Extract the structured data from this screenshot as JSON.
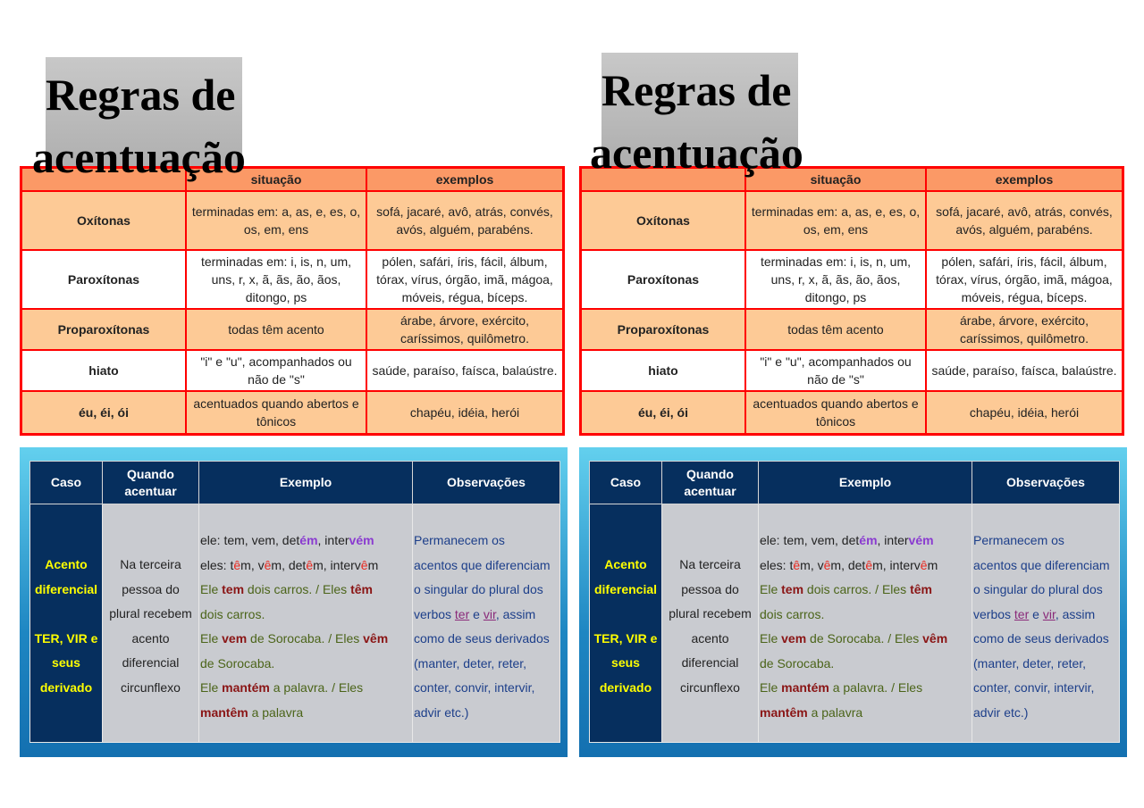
{
  "title": {
    "line1": "Regras de",
    "line2": "acentuação"
  },
  "rules_table": {
    "headers": [
      "",
      "situação",
      "exemplos"
    ],
    "rows": [
      {
        "tipo": "Oxítonas",
        "situacao": "terminadas em: a, as, e, es, o, os, em, ens",
        "exemplos": "sofá, jacaré, avô, atrás, convés, avós, alguém, parabéns."
      },
      {
        "tipo": "Paroxítonas",
        "situacao": "terminadas em: i, is, n, um, uns, r, x, ã, ãs, ão, ãos, ditongo, ps",
        "exemplos": "pólen, safári, íris, fácil, álbum, tórax, vírus, órgão, imã, mágoa, móveis, régua, bíceps."
      },
      {
        "tipo": "Proparoxítonas",
        "situacao": "todas têm acento",
        "exemplos": "árabe, árvore, exército, caríssimos, quilômetro."
      },
      {
        "tipo": "hiato",
        "situacao": "\"i\" e \"u\", acompanhados ou não de \"s\"",
        "exemplos": "saúde, paraíso, faísca, balaústre."
      },
      {
        "tipo": "éu, éi, ói",
        "situacao": "acentuados quando abertos e tônicos",
        "exemplos": "chapéu, idéia, herói"
      }
    ]
  },
  "diff_table": {
    "headers": [
      "Caso",
      "Quando acentuar",
      "Exemplo",
      "Observações"
    ],
    "caso_lines": [
      "Acento",
      "diferencial",
      "",
      "TER, VIR e",
      "seus",
      "derivado"
    ],
    "quando_lines": [
      "Na terceira",
      "pessoa do",
      "plural recebem",
      "acento",
      "diferencial",
      "circunflexo"
    ],
    "exemplo_lines": [
      [
        [
          "ele: tem, vem, det",
          "n"
        ],
        [
          "ém",
          "p"
        ],
        [
          ", inter",
          "n"
        ],
        [
          "vém",
          "p"
        ]
      ],
      [
        [
          "eles: t",
          "n"
        ],
        [
          "ê",
          "r"
        ],
        [
          "m, v",
          "n"
        ],
        [
          "ê",
          "r"
        ],
        [
          "m, det",
          "n"
        ],
        [
          "ê",
          "r"
        ],
        [
          "m, interv",
          "n"
        ],
        [
          "ê",
          "r"
        ],
        [
          "m",
          "n"
        ]
      ],
      [
        [
          "Ele ",
          "g"
        ],
        [
          "tem",
          "b"
        ],
        [
          " dois carros. / Eles ",
          "g"
        ],
        [
          "têm",
          "b"
        ]
      ],
      [
        [
          "dois carros.",
          "g"
        ]
      ],
      [
        [
          "Ele ",
          "g"
        ],
        [
          "vem",
          "b"
        ],
        [
          " de Sorocaba. / Eles ",
          "g"
        ],
        [
          "vêm",
          "b"
        ]
      ],
      [
        [
          "de Sorocaba.",
          "g"
        ]
      ],
      [
        [
          "Ele ",
          "g"
        ],
        [
          "mantém",
          "b"
        ],
        [
          " a palavra.  / Eles",
          "g"
        ]
      ],
      [
        [
          "mantêm",
          "b"
        ],
        [
          " a palavra",
          "g"
        ]
      ]
    ],
    "obs_lines": [
      [
        [
          "Permanecem os",
          ""
        ]
      ],
      [
        [
          "acentos que diferenciam",
          ""
        ]
      ],
      [
        [
          "o singular do plural dos",
          ""
        ]
      ],
      [
        [
          "verbos ",
          ""
        ],
        [
          "ter",
          "u"
        ],
        [
          " e ",
          ""
        ],
        [
          "vir",
          "u"
        ],
        [
          ", assim",
          ""
        ]
      ],
      [
        [
          "como de seus derivados",
          ""
        ]
      ],
      [
        [
          "(manter, deter, reter,",
          ""
        ]
      ],
      [
        [
          "conter, convir, intervir,",
          ""
        ]
      ],
      [
        [
          "advir etc.)",
          ""
        ]
      ]
    ]
  }
}
